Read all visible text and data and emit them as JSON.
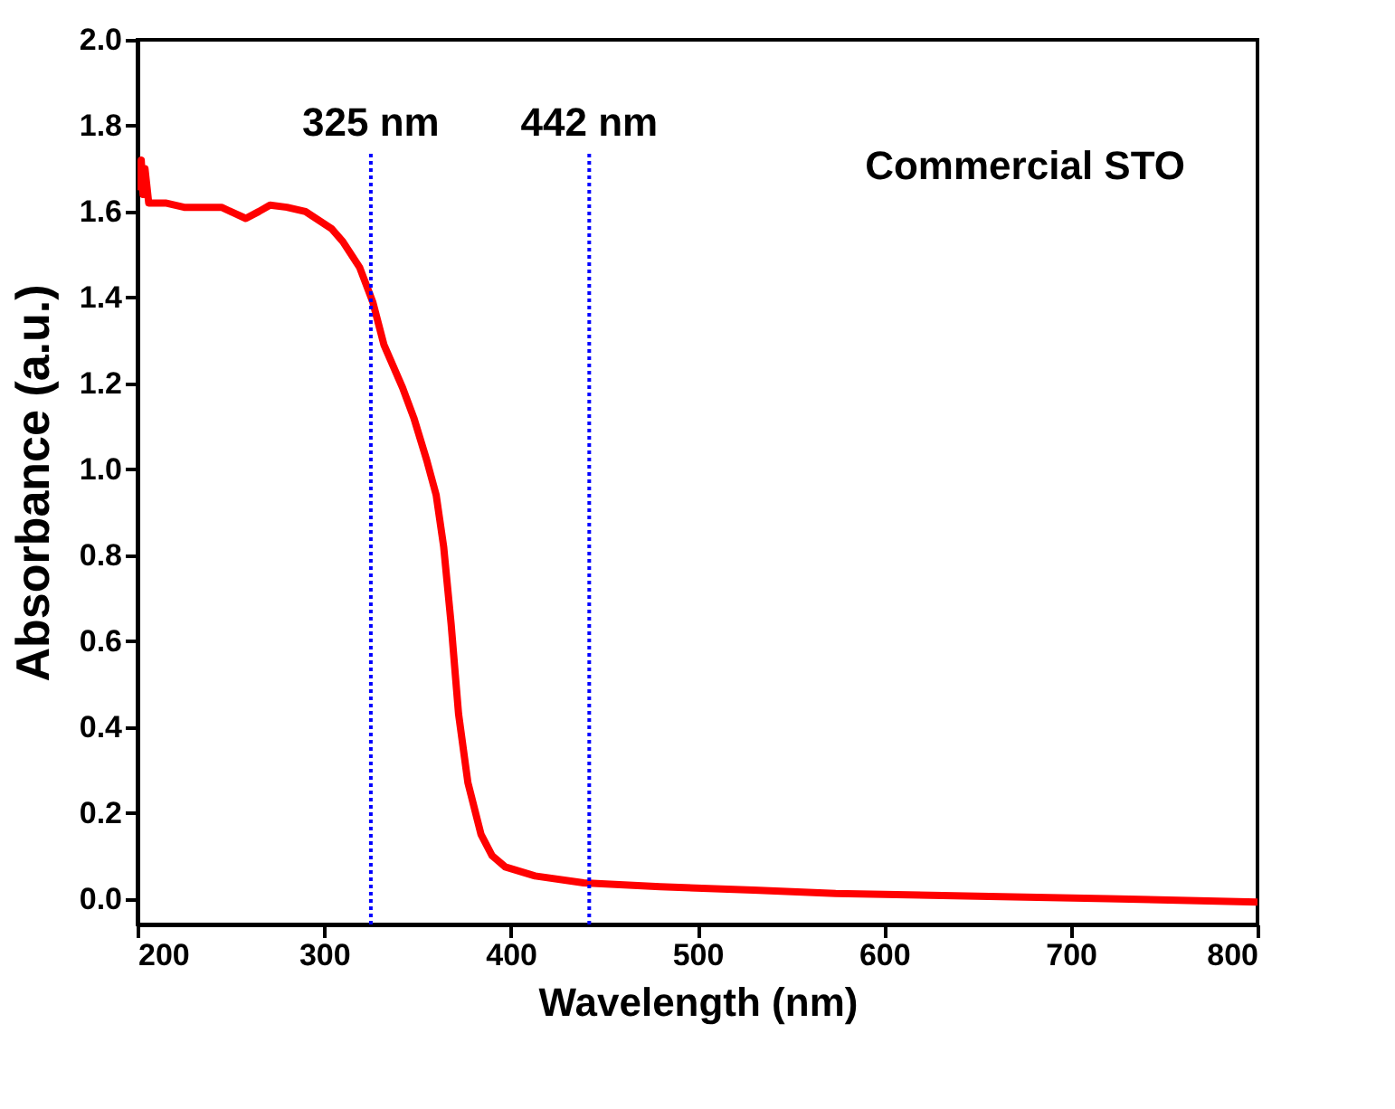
{
  "chart_data": {
    "type": "line",
    "xlabel": "Wavelength (nm)",
    "ylabel": "Absorbance (a.u.)",
    "annotations": [
      "Commercial STO"
    ],
    "xlim": [
      200,
      800
    ],
    "xticks": [
      200,
      300,
      400,
      500,
      600,
      700,
      800
    ],
    "ylim": [
      -0.06,
      2.0
    ],
    "yticks": [
      {
        "value": 0,
        "label": "0.0"
      },
      0.2,
      0.4,
      0.6,
      0.8,
      {
        "value": 1,
        "label": "1.0"
      },
      1.2,
      1.4,
      1.6,
      1.8,
      {
        "value": 2,
        "label": "2.0"
      }
    ],
    "grid": false,
    "ref_lines": [
      {
        "axis": "x",
        "value": 325,
        "label": "325 nm",
        "color": "#0000ff",
        "line_style": "dotted"
      },
      {
        "axis": "x",
        "value": 442,
        "label": "442 nm",
        "color": "#0000ff",
        "line_style": "dotted"
      }
    ],
    "series": [
      {
        "color": "#ff0000",
        "x": [
          200,
          202,
          203,
          204,
          206,
          215,
          225,
          235,
          245,
          258,
          265,
          271,
          280,
          290,
          297,
          304,
          310,
          319,
          326,
          332,
          337,
          342,
          348,
          355,
          360,
          364,
          368,
          372,
          377,
          384,
          390,
          397,
          413,
          439,
          480,
          530,
          574,
          650,
          720,
          800
        ],
        "values": [
          1.65,
          1.72,
          1.64,
          1.7,
          1.62,
          1.62,
          1.61,
          1.61,
          1.61,
          1.584,
          1.6,
          1.615,
          1.61,
          1.6,
          1.58,
          1.56,
          1.53,
          1.47,
          1.39,
          1.29,
          1.24,
          1.19,
          1.12,
          1.02,
          0.94,
          0.82,
          0.64,
          0.43,
          0.27,
          0.15,
          0.1,
          0.074,
          0.053,
          0.037,
          0.028,
          0.02,
          0.012,
          0.006,
          0.0,
          -0.008
        ]
      }
    ]
  }
}
